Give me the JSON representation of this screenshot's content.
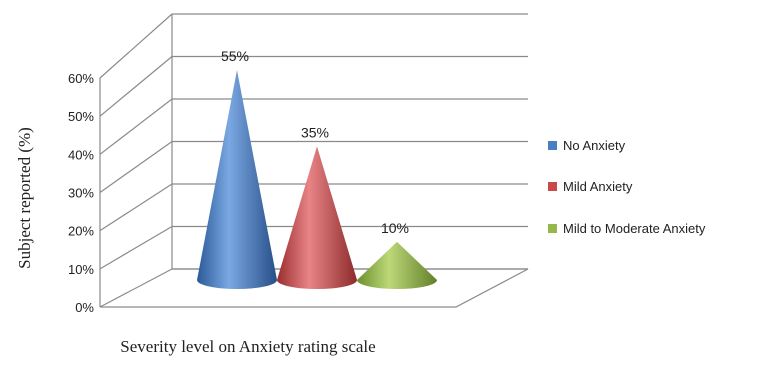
{
  "chart_data": {
    "type": "bar",
    "style": "3d-cone",
    "title": "",
    "xlabel": "Severity level on Anxiety rating scale",
    "ylabel": "Subject reported (%)",
    "ylim": [
      0,
      60
    ],
    "yticks": [
      "0%",
      "10%",
      "20%",
      "30%",
      "40%",
      "50%",
      "60%"
    ],
    "grid": true,
    "legend_position": "right",
    "categories": [
      "No Anxiety",
      "Mild Anxiety",
      "Mild to Moderate Anxiety"
    ],
    "values": [
      55,
      35,
      10
    ],
    "data_labels": [
      "55%",
      "35%",
      "10%"
    ],
    "colors": [
      "#4a7fc4",
      "#c9484a",
      "#95b84a"
    ]
  }
}
